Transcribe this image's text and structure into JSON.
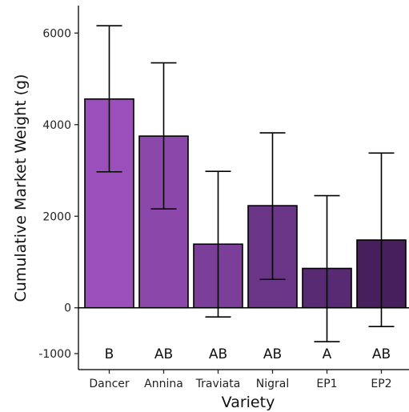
{
  "chart_data": {
    "type": "bar",
    "title": "",
    "xlabel": "Variety",
    "ylabel": "Cumulative Market Weight (g)",
    "categories": [
      "Dancer",
      "Annina",
      "Traviata",
      "Nigral",
      "EP1",
      "EP2"
    ],
    "values": [
      4560,
      3750,
      1390,
      2230,
      860,
      1480
    ],
    "error_low": [
      2970,
      2160,
      -200,
      620,
      -740,
      -410
    ],
    "error_high": [
      6160,
      5350,
      2980,
      3820,
      2450,
      3380
    ],
    "letters": [
      "B",
      "AB",
      "AB",
      "AB",
      "A",
      "AB"
    ],
    "bar_colors": [
      "#9b4fba",
      "#8c47aa",
      "#7c3f99",
      "#6a3487",
      "#582a73",
      "#461f5c"
    ],
    "ylim": [
      -1350,
      6600
    ],
    "yticks": [
      -1000,
      0,
      2000,
      4000,
      6000
    ],
    "grid": false,
    "legend": "none"
  }
}
